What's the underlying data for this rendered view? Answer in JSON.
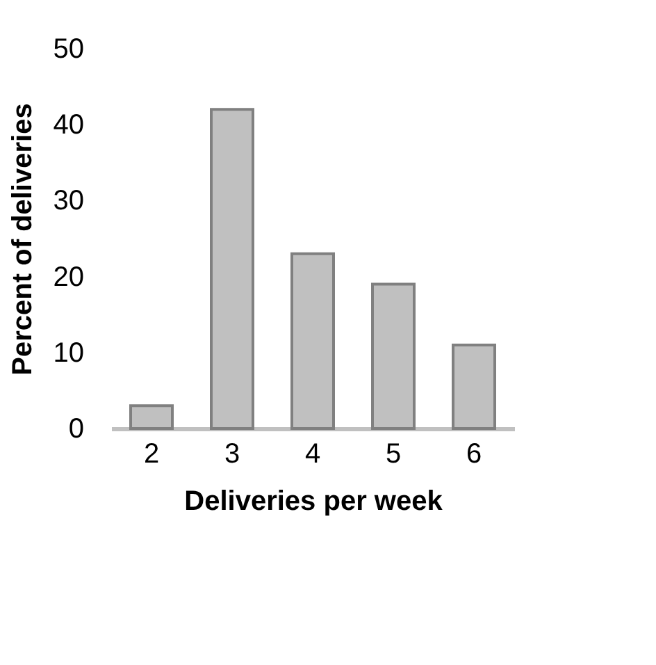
{
  "chart_data": {
    "type": "bar",
    "xlabel": "Deliveries per week",
    "ylabel": "Percent of deliveries",
    "categories": [
      "2",
      "3",
      "4",
      "5",
      "6"
    ],
    "values": [
      3,
      42,
      23,
      19,
      11
    ],
    "color": "#c0c0c0",
    "ylim": [
      0,
      50
    ],
    "yticks": [
      0,
      10,
      20,
      30,
      40,
      50
    ],
    "grid": false
  }
}
